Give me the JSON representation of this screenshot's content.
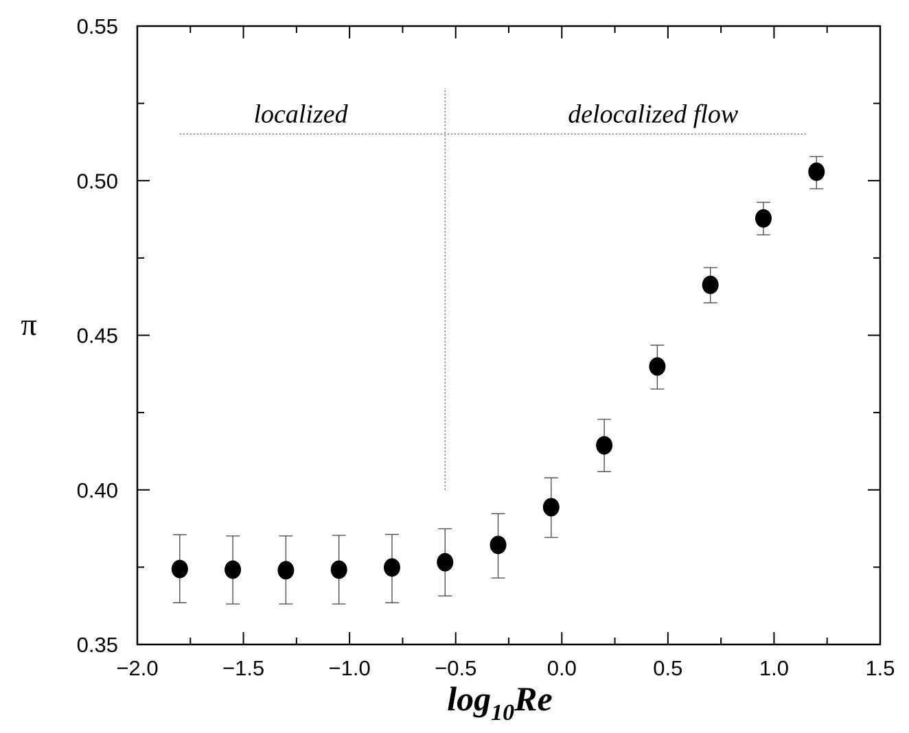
{
  "chart_data": {
    "type": "scatter",
    "title": "",
    "xlabel": "log10Re",
    "xlabel_base": "log",
    "xlabel_sub": "10",
    "xlabel_tail": "Re",
    "ylabel": "π",
    "xlim": [
      -2.0,
      1.5
    ],
    "ylim": [
      0.35,
      0.55
    ],
    "x_scale": "linear",
    "y_scale": "linear",
    "grid": false,
    "legend": "none",
    "x_ticks": [
      "-2.0",
      "-1.5",
      "-1.0",
      "-0.5",
      "0.0",
      "0.5",
      "1.0",
      "1.5"
    ],
    "x_tick_labels": [
      "−2.0",
      "−1.5",
      "−1.0",
      "−0.5",
      "0.0",
      "0.5",
      "1.0",
      "1.5"
    ],
    "y_ticks": [
      "0.35",
      "0.40",
      "0.45",
      "0.50",
      "0.55"
    ],
    "x_minor_step": 0.25,
    "y_minor_step": 0.025,
    "marker_color": "#000000",
    "series": [
      {
        "x": [
          -1.8,
          -1.55,
          -1.3,
          -1.05,
          -0.8,
          -0.55,
          -0.3,
          -0.05,
          0.2,
          0.45,
          0.7,
          0.95,
          1.2
        ],
        "y": [
          0.3744,
          0.3742,
          0.374,
          0.3742,
          0.3749,
          0.3766,
          0.3822,
          0.3944,
          0.4144,
          0.4399,
          0.4663,
          0.4878,
          0.5029
        ],
        "y_err_low": [
          0.3635,
          0.3631,
          0.3631,
          0.3631,
          0.3635,
          0.3657,
          0.3715,
          0.3846,
          0.4059,
          0.4326,
          0.4605,
          0.4825,
          0.4974
        ],
        "y_err_high": [
          0.3855,
          0.3851,
          0.3851,
          0.3853,
          0.3856,
          0.3874,
          0.3923,
          0.4039,
          0.4228,
          0.4468,
          0.4719,
          0.493,
          0.5078
        ]
      }
    ],
    "annotations": {
      "regions": [
        {
          "text": "localized",
          "x": -1.23,
          "y": 0.5215
        },
        {
          "text": "delocalized flow",
          "x": 0.43,
          "y": 0.5215
        }
      ],
      "h_line": {
        "y": 0.5151,
        "x_from": -1.8,
        "x_to": 1.15,
        "style": "dotted"
      },
      "v_line": {
        "x": -0.55,
        "y_from": 0.4,
        "y_to": 0.53,
        "style": "dotted"
      }
    }
  }
}
